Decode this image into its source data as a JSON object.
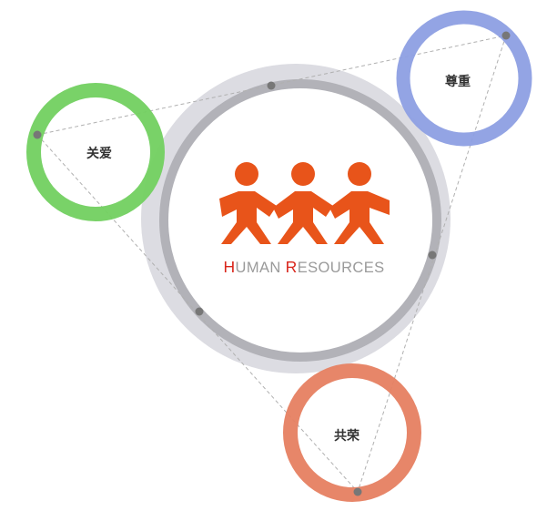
{
  "logo": {
    "word1_initial": "H",
    "word1_rest": "UMAN",
    "word2_initial": "R",
    "word2_rest": "ESOURCES",
    "figure_color": "#e8541a",
    "initial_color": "#d9261c",
    "text_color": "#9a9a9a"
  },
  "nodes": [
    {
      "id": "respect",
      "label": "尊重",
      "color": "#8d9fe3"
    },
    {
      "id": "care",
      "label": "关爱",
      "color": "#72d060"
    },
    {
      "id": "shared-prosperity",
      "label": "共荣",
      "color": "#e67f61"
    }
  ],
  "colors": {
    "outer_halo": "#dcdce2",
    "main_ring": "#b2b2b8",
    "dot": "#777777",
    "dashed_line": "#b0b0b0"
  }
}
